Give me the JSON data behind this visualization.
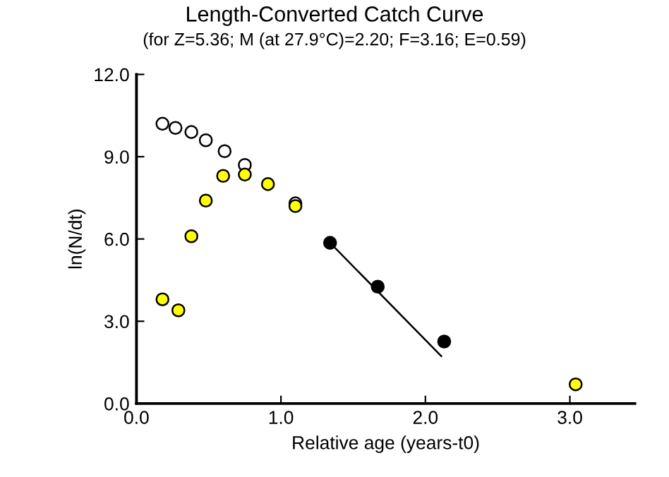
{
  "chart_data": {
    "type": "scatter",
    "title": "Length-Converted Catch Curve",
    "subtitle": "(for Z=5.36; M (at 27.9°C)=2.20; F=3.16; E=0.59)",
    "xlabel": "Relative age (years-t0)",
    "ylabel": "ln(N/dt)",
    "xlim": [
      0,
      3.45
    ],
    "ylim": [
      0,
      12
    ],
    "xticks": [
      {
        "value": 0,
        "label": "0.0"
      },
      {
        "value": 1,
        "label": "1.0"
      },
      {
        "value": 2,
        "label": "2.0"
      },
      {
        "value": 3,
        "label": "3.0"
      }
    ],
    "yticks": [
      {
        "value": 0,
        "label": "0.0"
      },
      {
        "value": 3,
        "label": "3.0"
      },
      {
        "value": 6,
        "label": "6.0"
      },
      {
        "value": 9,
        "label": "9.0"
      },
      {
        "value": 12,
        "label": "12.0"
      }
    ],
    "grid": false,
    "legend": false,
    "marker": "circle",
    "series": [
      {
        "color": "#ffffff",
        "x": [
          0.18,
          0.27,
          0.38,
          0.48,
          0.61,
          0.75,
          1.1
        ],
        "values": [
          10.2,
          10.05,
          9.9,
          9.6,
          9.2,
          8.7,
          7.3
        ]
      },
      {
        "color": "#ffff00",
        "x": [
          0.18,
          0.29,
          0.38,
          0.48,
          0.6,
          0.75,
          0.91,
          1.1,
          3.04
        ],
        "values": [
          3.8,
          3.4,
          6.1,
          7.4,
          8.3,
          8.35,
          8.0,
          7.2,
          0.7
        ]
      },
      {
        "color": "#000000",
        "x": [
          1.34,
          1.67,
          2.13
        ],
        "values": [
          5.86,
          4.26,
          2.26
        ]
      },
      {
        "type": "line",
        "color": "#000000",
        "marker": "none",
        "x": [
          1.34,
          2.11
        ],
        "values": [
          5.86,
          1.73
        ]
      }
    ]
  }
}
